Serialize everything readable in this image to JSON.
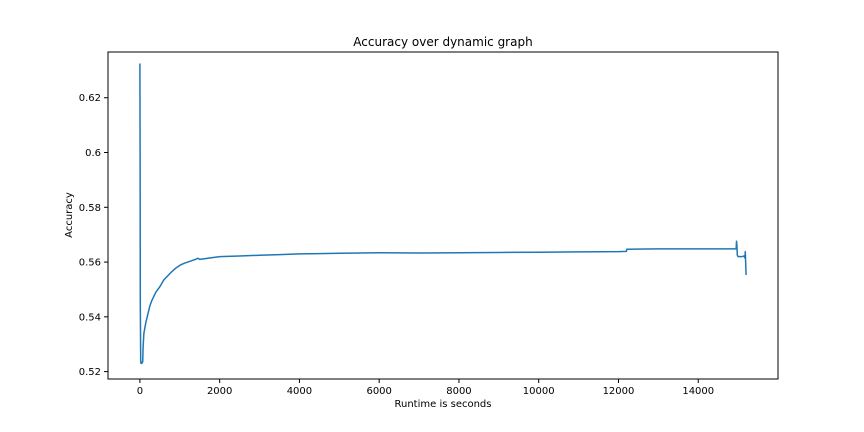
{
  "chart_data": {
    "type": "line",
    "title": "Accuracy over dynamic graph",
    "xlabel": "Runtime is seconds",
    "ylabel": "Accuracy",
    "xlim": [
      -800,
      16000
    ],
    "ylim": [
      0.5173,
      0.6367
    ],
    "xticks": [
      {
        "value": 0,
        "label": "0"
      },
      {
        "value": 2000,
        "label": "2000"
      },
      {
        "value": 4000,
        "label": "4000"
      },
      {
        "value": 6000,
        "label": "6000"
      },
      {
        "value": 8000,
        "label": "8000"
      },
      {
        "value": 10000,
        "label": "10000"
      },
      {
        "value": 12000,
        "label": "12000"
      },
      {
        "value": 14000,
        "label": "14000"
      }
    ],
    "yticks": [
      {
        "value": 0.52,
        "label": "0.52"
      },
      {
        "value": 0.54,
        "label": "0.54"
      },
      {
        "value": 0.56,
        "label": "0.56"
      },
      {
        "value": 0.58,
        "label": "0.58"
      },
      {
        "value": 0.6,
        "label": "0.6"
      },
      {
        "value": 0.62,
        "label": "0.62"
      }
    ],
    "grid": false,
    "legend": false,
    "series": [
      {
        "color": "#1f77b4",
        "x": [
          0,
          5,
          10,
          20,
          30,
          40,
          50,
          55,
          60,
          70,
          80,
          100,
          150,
          200,
          250,
          300,
          400,
          500,
          600,
          700,
          800,
          900,
          1000,
          1100,
          1200,
          1300,
          1400,
          1450,
          1500,
          2000,
          2500,
          3000,
          3500,
          4000,
          4500,
          5000,
          5500,
          6000,
          7000,
          8000,
          9000,
          10000,
          11000,
          12000,
          12200,
          12210,
          13000,
          14000,
          14950,
          14960,
          14970,
          14980,
          15000,
          15100,
          15150,
          15170,
          15180,
          15200
        ],
        "y": [
          0.6325,
          0.6,
          0.545,
          0.5235,
          0.523,
          0.523,
          0.523,
          0.5235,
          0.5235,
          0.5235,
          0.529,
          0.534,
          0.538,
          0.541,
          0.544,
          0.546,
          0.549,
          0.551,
          0.5535,
          0.555,
          0.5565,
          0.5578,
          0.5588,
          0.5595,
          0.56,
          0.5605,
          0.561,
          0.5614,
          0.561,
          0.562,
          0.5622,
          0.5625,
          0.5627,
          0.563,
          0.5631,
          0.5632,
          0.5633,
          0.5634,
          0.5633,
          0.5634,
          0.5635,
          0.5636,
          0.5637,
          0.5638,
          0.5639,
          0.5647,
          0.5648,
          0.5648,
          0.5648,
          0.5676,
          0.566,
          0.5625,
          0.562,
          0.562,
          0.5622,
          0.5615,
          0.5638,
          0.5553
        ]
      }
    ]
  }
}
